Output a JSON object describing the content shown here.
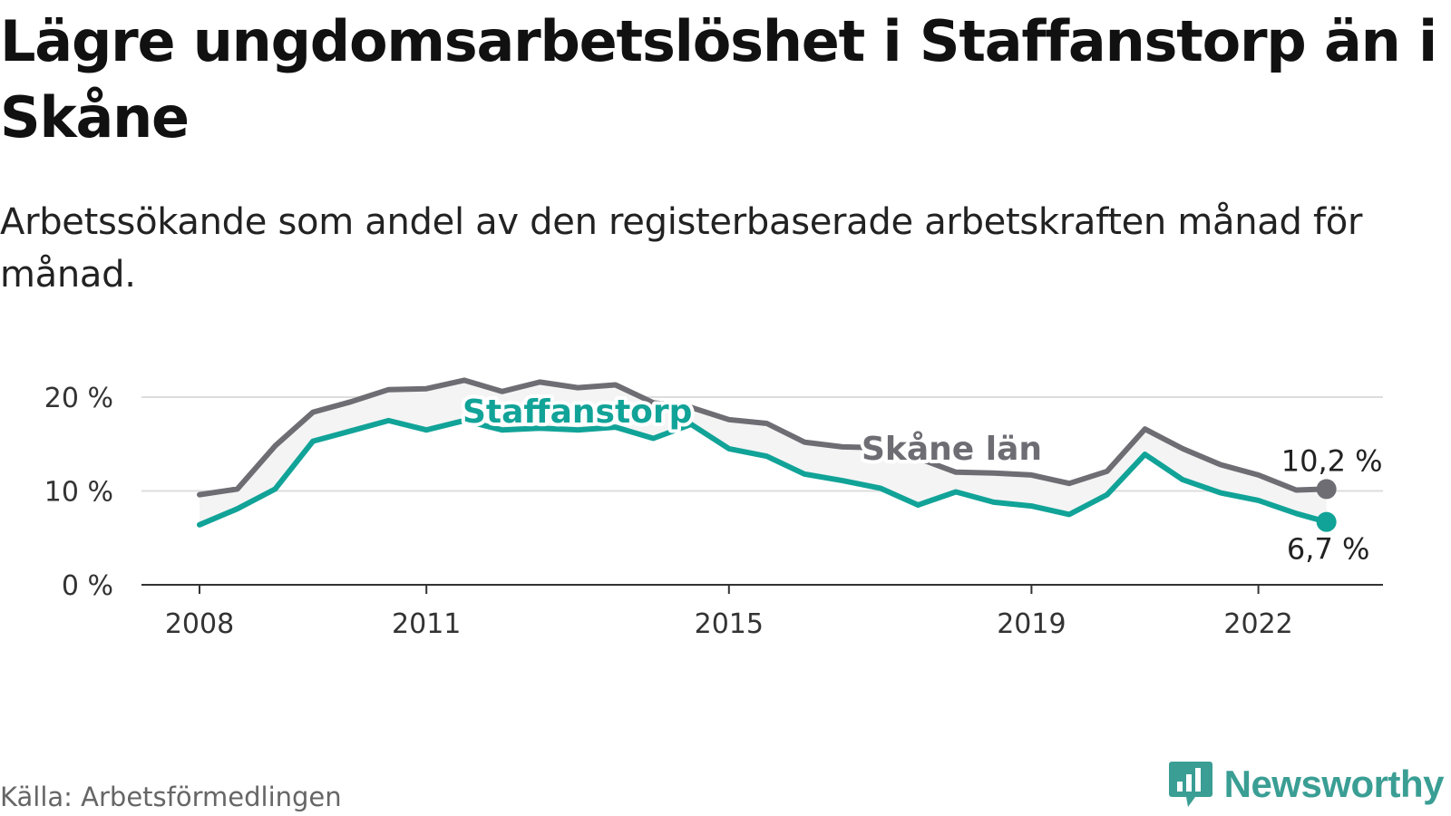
{
  "title": "Lägre ungdomsarbetslöshet i Staffanstorp än i Skåne",
  "subtitle": "Arbetssökande som andel av den registerbaserade arbetskraften månad för månad.",
  "source": "Källa: Arbetsförmedlingen",
  "brand": "Newsworthy",
  "colors": {
    "skane": "#6e6d73",
    "staffanstorp": "#11a398",
    "grid": "#dddddd",
    "axis": "#333333",
    "fill": "#f4f4f4"
  },
  "chart_data": {
    "type": "line",
    "title": "Lägre ungdomsarbetslöshet i Staffanstorp än i Skåne",
    "xlabel": "",
    "ylabel": "",
    "ylim": [
      0,
      20
    ],
    "xlim": [
      2008,
      2023
    ],
    "y_ticks": [
      0,
      10,
      20
    ],
    "y_tick_labels": [
      "0 %",
      "10 %",
      "20 %"
    ],
    "x_ticks": [
      2008,
      2011,
      2015,
      2019,
      2022
    ],
    "x_tick_labels": [
      "2008",
      "2011",
      "2015",
      "2019",
      "2022"
    ],
    "grid": true,
    "series": [
      {
        "name": "Skåne län",
        "label": "Skåne län",
        "end_label": "10,2 %",
        "x": [
          2008.0,
          2008.5,
          2009.0,
          2009.5,
          2010.0,
          2010.5,
          2011.0,
          2011.5,
          2012.0,
          2012.5,
          2013.0,
          2013.5,
          2014.0,
          2014.5,
          2015.0,
          2015.5,
          2016.0,
          2016.5,
          2017.0,
          2017.5,
          2018.0,
          2018.5,
          2019.0,
          2019.5,
          2020.0,
          2020.5,
          2021.0,
          2021.5,
          2022.0,
          2022.5,
          2022.9
        ],
        "y": [
          9.6,
          10.2,
          14.8,
          18.4,
          19.5,
          20.8,
          20.9,
          21.8,
          20.6,
          21.6,
          21.0,
          21.3,
          19.4,
          18.9,
          17.6,
          17.2,
          15.2,
          14.7,
          14.6,
          13.5,
          12.0,
          11.9,
          11.7,
          10.8,
          12.1,
          16.6,
          14.5,
          12.8,
          11.7,
          10.1,
          10.2
        ]
      },
      {
        "name": "Staffanstorp",
        "label": "Staffanstorp",
        "end_label": "6,7 %",
        "x": [
          2008.0,
          2008.5,
          2009.0,
          2009.5,
          2010.0,
          2010.5,
          2011.0,
          2011.5,
          2012.0,
          2012.5,
          2013.0,
          2013.5,
          2014.0,
          2014.5,
          2015.0,
          2015.5,
          2016.0,
          2016.5,
          2017.0,
          2017.5,
          2018.0,
          2018.5,
          2019.0,
          2019.5,
          2020.0,
          2020.5,
          2021.0,
          2021.5,
          2022.0,
          2022.5,
          2022.9
        ],
        "y": [
          6.4,
          8.1,
          10.2,
          15.3,
          16.4,
          17.5,
          16.5,
          17.5,
          16.5,
          16.7,
          16.5,
          16.8,
          15.6,
          17.1,
          14.5,
          13.7,
          11.8,
          11.1,
          10.3,
          8.5,
          9.9,
          8.8,
          8.4,
          7.5,
          9.6,
          13.9,
          11.2,
          9.8,
          9.0,
          7.6,
          6.7
        ]
      }
    ]
  }
}
